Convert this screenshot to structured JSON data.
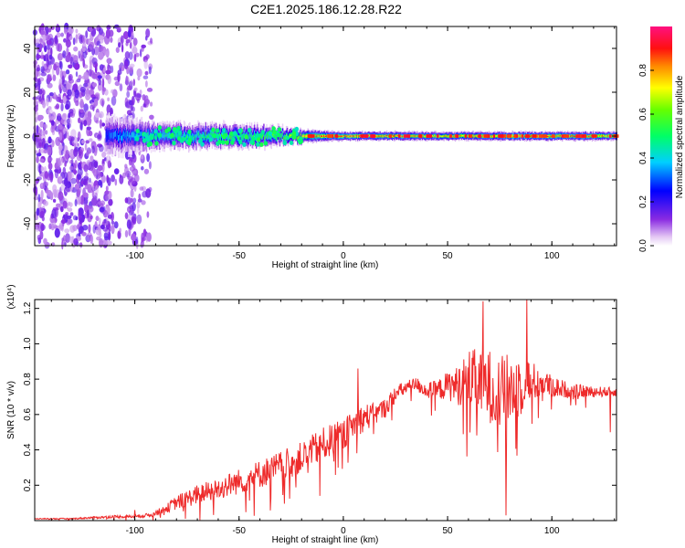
{
  "title": "C2E1.2025.186.12.28.R22",
  "colorbar": {
    "label": "Normalized spectral amplitude",
    "ticks": [
      "0.0",
      "0.2",
      "0.4",
      "0.6",
      "0.8"
    ],
    "tick_values": [
      0.0,
      0.2,
      0.4,
      0.6,
      0.8
    ],
    "range": [
      0.0,
      1.0
    ]
  },
  "chart_data": [
    {
      "type": "heatmap",
      "xlabel": "Height of straight line (km)",
      "ylabel": "Frequency (Hz)",
      "xlim": [
        -148,
        131
      ],
      "ylim": [
        -50,
        50
      ],
      "x_ticks": [
        -100,
        -50,
        0,
        50,
        100
      ],
      "x_tick_labels": [
        "-100",
        "-50",
        "0",
        "50",
        "100"
      ],
      "y_ticks": [
        -40,
        -20,
        0,
        20,
        40
      ],
      "y_tick_labels": [
        "-40",
        "-20",
        "0",
        "20",
        "40"
      ],
      "colormap": "rainbow (white at 0, purple-blue-cyan-green-yellow-orange-red-magenta at 1)",
      "features": {
        "noise_region_x": [
          -148,
          -92
        ],
        "band_center_hz": 0,
        "band_halfwidth_hz": [
          [
            -112,
            9
          ],
          [
            -90,
            6
          ],
          [
            -40,
            5
          ],
          [
            -20,
            3
          ],
          [
            0,
            2
          ],
          [
            130,
            2
          ]
        ],
        "band_peak_amplitude": [
          [
            -112,
            0.3
          ],
          [
            -90,
            0.45
          ],
          [
            -60,
            0.5
          ],
          [
            -30,
            0.55
          ],
          [
            -15,
            0.8
          ],
          [
            0,
            0.85
          ],
          [
            50,
            0.75
          ],
          [
            92,
            0.85
          ],
          [
            130,
            0.8
          ]
        ]
      }
    },
    {
      "type": "line",
      "xlabel": "Height of straight line (km)",
      "ylabel": "SNR (10 * v/v)",
      "y_multiplier": "(x10⁴)",
      "xlim": [
        -148,
        131
      ],
      "ylim": [
        0,
        1.25
      ],
      "x_ticks": [
        -100,
        -50,
        0,
        50,
        100
      ],
      "x_tick_labels": [
        "-100",
        "-50",
        "0",
        "50",
        "100"
      ],
      "y_ticks": [
        0.2,
        0.4,
        0.6,
        0.8,
        1.0,
        1.2
      ],
      "y_tick_labels": [
        "0.2",
        "0.4",
        "0.6",
        "0.8",
        "1.0",
        "1.2"
      ],
      "color": "#ee2b2b",
      "series": [
        {
          "x": [
            -148,
            -130,
            -110,
            -100,
            -92,
            -85,
            -80,
            -75,
            -70,
            -60,
            -50,
            -40,
            -30,
            -20,
            -10,
            0,
            5,
            10,
            15,
            20,
            25,
            30,
            35,
            40,
            45,
            50,
            55,
            60,
            65,
            70,
            75,
            80,
            85,
            90,
            95,
            100,
            110,
            120,
            131
          ],
          "y": [
            0.01,
            0.01,
            0.02,
            0.02,
            0.03,
            0.06,
            0.09,
            0.11,
            0.13,
            0.16,
            0.2,
            0.24,
            0.28,
            0.33,
            0.4,
            0.46,
            0.52,
            0.56,
            0.58,
            0.62,
            0.7,
            0.74,
            0.76,
            0.72,
            0.72,
            0.74,
            0.73,
            0.76,
            0.72,
            0.7,
            0.66,
            0.68,
            0.72,
            0.74,
            0.76,
            0.74,
            0.72,
            0.72,
            0.72
          ],
          "spread": [
            0.003,
            0.004,
            0.01,
            0.01,
            0.015,
            0.03,
            0.05,
            0.06,
            0.07,
            0.08,
            0.09,
            0.1,
            0.11,
            0.11,
            0.12,
            0.11,
            0.1,
            0.1,
            0.08,
            0.07,
            0.06,
            0.05,
            0.05,
            0.06,
            0.07,
            0.1,
            0.14,
            0.2,
            0.24,
            0.26,
            0.26,
            0.26,
            0.24,
            0.16,
            0.1,
            0.08,
            0.05,
            0.04,
            0.03
          ]
        }
      ],
      "annotations": [
        {
          "x": 7,
          "y": 0.86
        },
        {
          "x": 67,
          "y": 1.24
        },
        {
          "x": 78,
          "y": 0.03
        },
        {
          "x": 88,
          "y": 1.25
        },
        {
          "x": -100,
          "y": 0.06
        },
        {
          "x": 128,
          "y": 0.5
        }
      ]
    }
  ]
}
